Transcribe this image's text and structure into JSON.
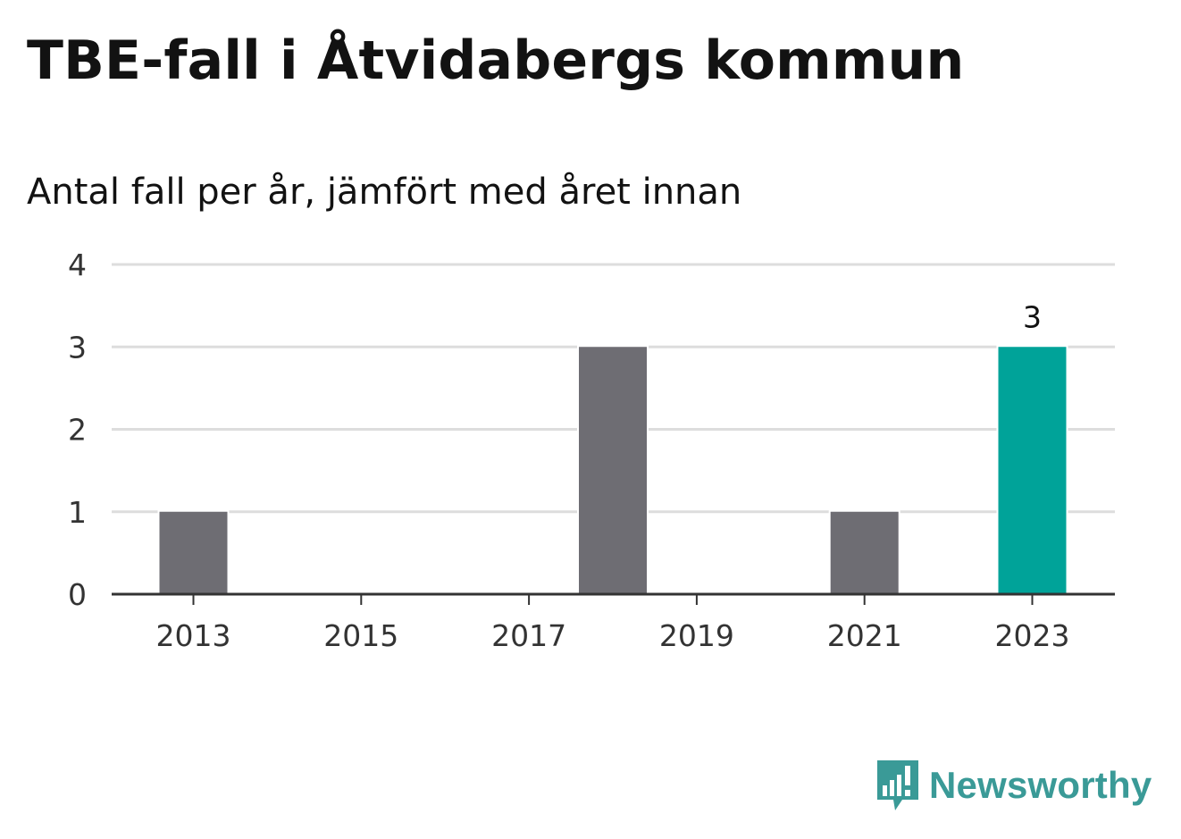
{
  "title": "TBE-fall i Åtvidabergs kommun",
  "subtitle": "Antal fall per år, jämfört med året innan",
  "brand": {
    "name": "Newsworthy",
    "logo_icon": "newsworthy-logo-icon",
    "color": "#3a9a97"
  },
  "colors": {
    "bar": "#6e6d73",
    "highlight": "#00a399",
    "grid": "#dddddd",
    "axis": "#333333"
  },
  "chart_data": {
    "type": "bar",
    "title": "TBE-fall i Åtvidabergs kommun",
    "subtitle": "Antal fall per år, jämfört med året innan",
    "xlabel": "",
    "ylabel": "",
    "categories": [
      "2013",
      "2014",
      "2015",
      "2016",
      "2017",
      "2018",
      "2019",
      "2020",
      "2021",
      "2022",
      "2023"
    ],
    "values": [
      1,
      0,
      0,
      0,
      0,
      3,
      0,
      0,
      1,
      0,
      3
    ],
    "highlight": "2023",
    "data_labels": [
      {
        "category": "2023",
        "text": "3"
      }
    ],
    "x_ticks": [
      "2013",
      "2015",
      "2017",
      "2019",
      "2021",
      "2023"
    ],
    "y_ticks": [
      0,
      1,
      2,
      3,
      4
    ],
    "ylim": [
      0,
      4
    ],
    "grid": true,
    "legend": "none"
  }
}
